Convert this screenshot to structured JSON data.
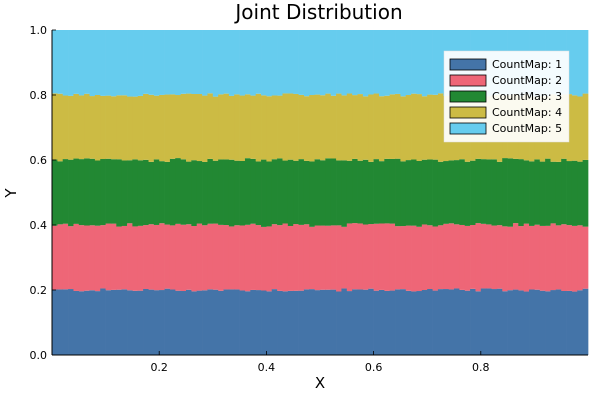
{
  "chart_data": {
    "type": "bar",
    "stacked": true,
    "title": "Joint Distribution",
    "xlabel": "X",
    "ylabel": "Y",
    "xlim": [
      0.0,
      1.0
    ],
    "ylim": [
      0.0,
      1.0
    ],
    "x_ticks": [
      0.2,
      0.4,
      0.6,
      0.8
    ],
    "x_tick_labels": [
      "0.2",
      "0.4",
      "0.6",
      "0.8"
    ],
    "y_ticks": [
      0.0,
      0.2,
      0.4,
      0.6,
      0.8,
      1.0
    ],
    "y_tick_labels": [
      "0.0",
      "0.2",
      "0.4",
      "0.6",
      "0.8",
      "1.0"
    ],
    "grid": false,
    "legend_position": "top-right",
    "bins": 100,
    "x_start": 0.0,
    "x_end": 1.0,
    "series": [
      {
        "name": "CountMap: 1",
        "color": "#4474a8",
        "cumulative_top": 0.2,
        "fluctuation": 0.005
      },
      {
        "name": "CountMap: 2",
        "color": "#ee6677",
        "cumulative_top": 0.4,
        "fluctuation": 0.006
      },
      {
        "name": "CountMap: 3",
        "color": "#228833",
        "cumulative_top": 0.6,
        "fluctuation": 0.006
      },
      {
        "name": "CountMap: 4",
        "color": "#ccbb44",
        "cumulative_top": 0.8,
        "fluctuation": 0.005
      },
      {
        "name": "CountMap: 5",
        "color": "#66ccee",
        "cumulative_top": 1.0,
        "fluctuation": 0.0
      }
    ]
  }
}
